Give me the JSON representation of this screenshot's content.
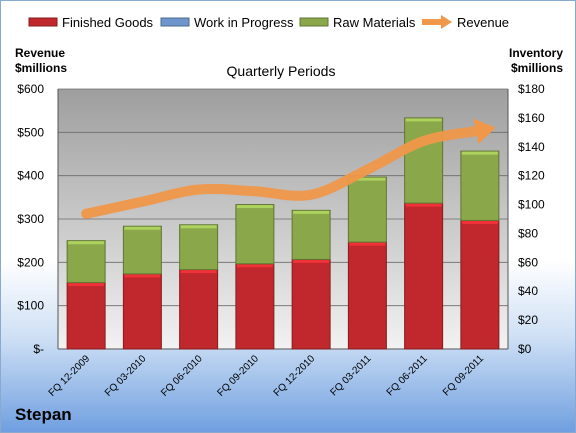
{
  "company": "Stepan",
  "chart_data": {
    "type": "bar",
    "stacked": true,
    "title": "Quarterly Periods",
    "categories": [
      "FQ 12-2009",
      "FQ 03-2010",
      "FQ 06-2010",
      "FQ 09-2010",
      "FQ 12-2010",
      "FQ 03-2011",
      "FQ 06-2011",
      "FQ 09-2011"
    ],
    "y_left": {
      "label_line1": "Revenue",
      "label_line2": "$millions",
      "ylim": [
        0,
        600
      ],
      "ticks": [
        "$-",
        "$100",
        "$200",
        "$300",
        "$400",
        "$500",
        "$600"
      ]
    },
    "y_right": {
      "label_line1": "Inventory",
      "label_line2": "$millions",
      "ylim": [
        0,
        180
      ],
      "ticks": [
        "$0",
        "$20",
        "$40",
        "$60",
        "$80",
        "$100",
        "$120",
        "$140",
        "$160",
        "$180"
      ]
    },
    "series": [
      {
        "name": "Finished Goods",
        "kind": "bar",
        "axis": "right",
        "color": "#c0282d",
        "values": [
          46,
          52,
          55,
          59,
          62,
          74,
          101,
          89
        ]
      },
      {
        "name": "Work in Progress",
        "kind": "bar",
        "axis": "right",
        "color": "#6f96cc",
        "values": [
          0,
          0,
          0,
          0,
          0,
          0,
          0,
          0
        ]
      },
      {
        "name": "Raw Materials",
        "kind": "bar",
        "axis": "right",
        "color": "#8aa84a",
        "values": [
          29,
          33,
          31,
          41,
          34,
          45,
          59,
          48
        ]
      },
      {
        "name": "Revenue",
        "kind": "line",
        "axis": "left",
        "color": "#f0974a",
        "values": [
          312,
          340,
          368,
          364,
          356,
          414,
          480,
          504
        ]
      }
    ],
    "grid": true,
    "legend_position": "top"
  }
}
